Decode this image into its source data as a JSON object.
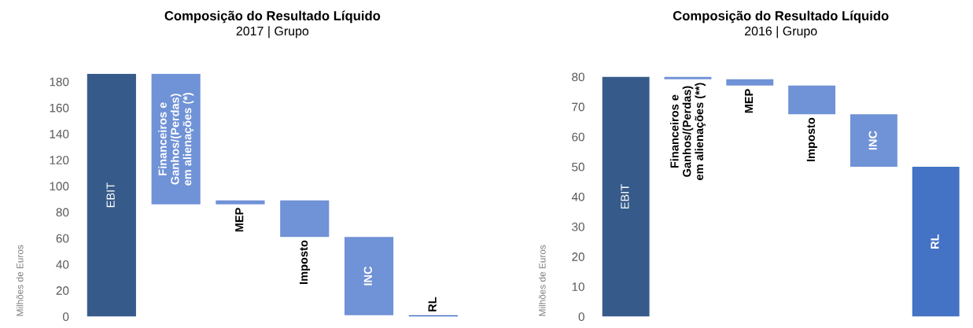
{
  "chart_data": [
    {
      "type": "bar",
      "title": "Composição do Resultado Líquido",
      "subtitle": "2017 | Grupo",
      "ylabel": "Milhões de Euros",
      "categories": [
        "EBIT",
        "Financeiros e\nGanhos/(Perdas)\nem alienações (*)",
        "MEP",
        "Imposto",
        "INC",
        "RL"
      ],
      "values": [
        186,
        -100,
        3,
        -28,
        -60,
        1
      ],
      "base": [
        0,
        186,
        86,
        89,
        61,
        0
      ],
      "colors": [
        "#365b8a",
        "#7092d6",
        "#7092d6",
        "#7092d6",
        "#7092d6",
        "#4472c4"
      ],
      "ylim": [
        0,
        186
      ],
      "yticks": [
        0,
        20,
        40,
        60,
        80,
        100,
        120,
        140,
        160,
        180
      ],
      "grid": false,
      "legend": false
    },
    {
      "type": "bar",
      "title": "Composição do Resultado Líquido",
      "subtitle": "2016 | Grupo",
      "ylabel": "Milhões de Euros",
      "categories": [
        "EBIT",
        "Financeiros e\nGanhos/(Perdas)\nem alienações (**)",
        "MEP",
        "Imposto",
        "INC",
        "RL"
      ],
      "values": [
        80,
        -0.8,
        -2.1,
        -9.6,
        -17.5,
        50
      ],
      "base": [
        0,
        80,
        79.2,
        77.1,
        67.5,
        0
      ],
      "colors": [
        "#365b8a",
        "#7092d6",
        "#7092d6",
        "#7092d6",
        "#7092d6",
        "#4472c4"
      ],
      "ylim": [
        0,
        81
      ],
      "yticks": [
        0,
        10,
        20,
        30,
        40,
        50,
        60,
        70,
        80
      ],
      "grid": false,
      "legend": false
    }
  ]
}
